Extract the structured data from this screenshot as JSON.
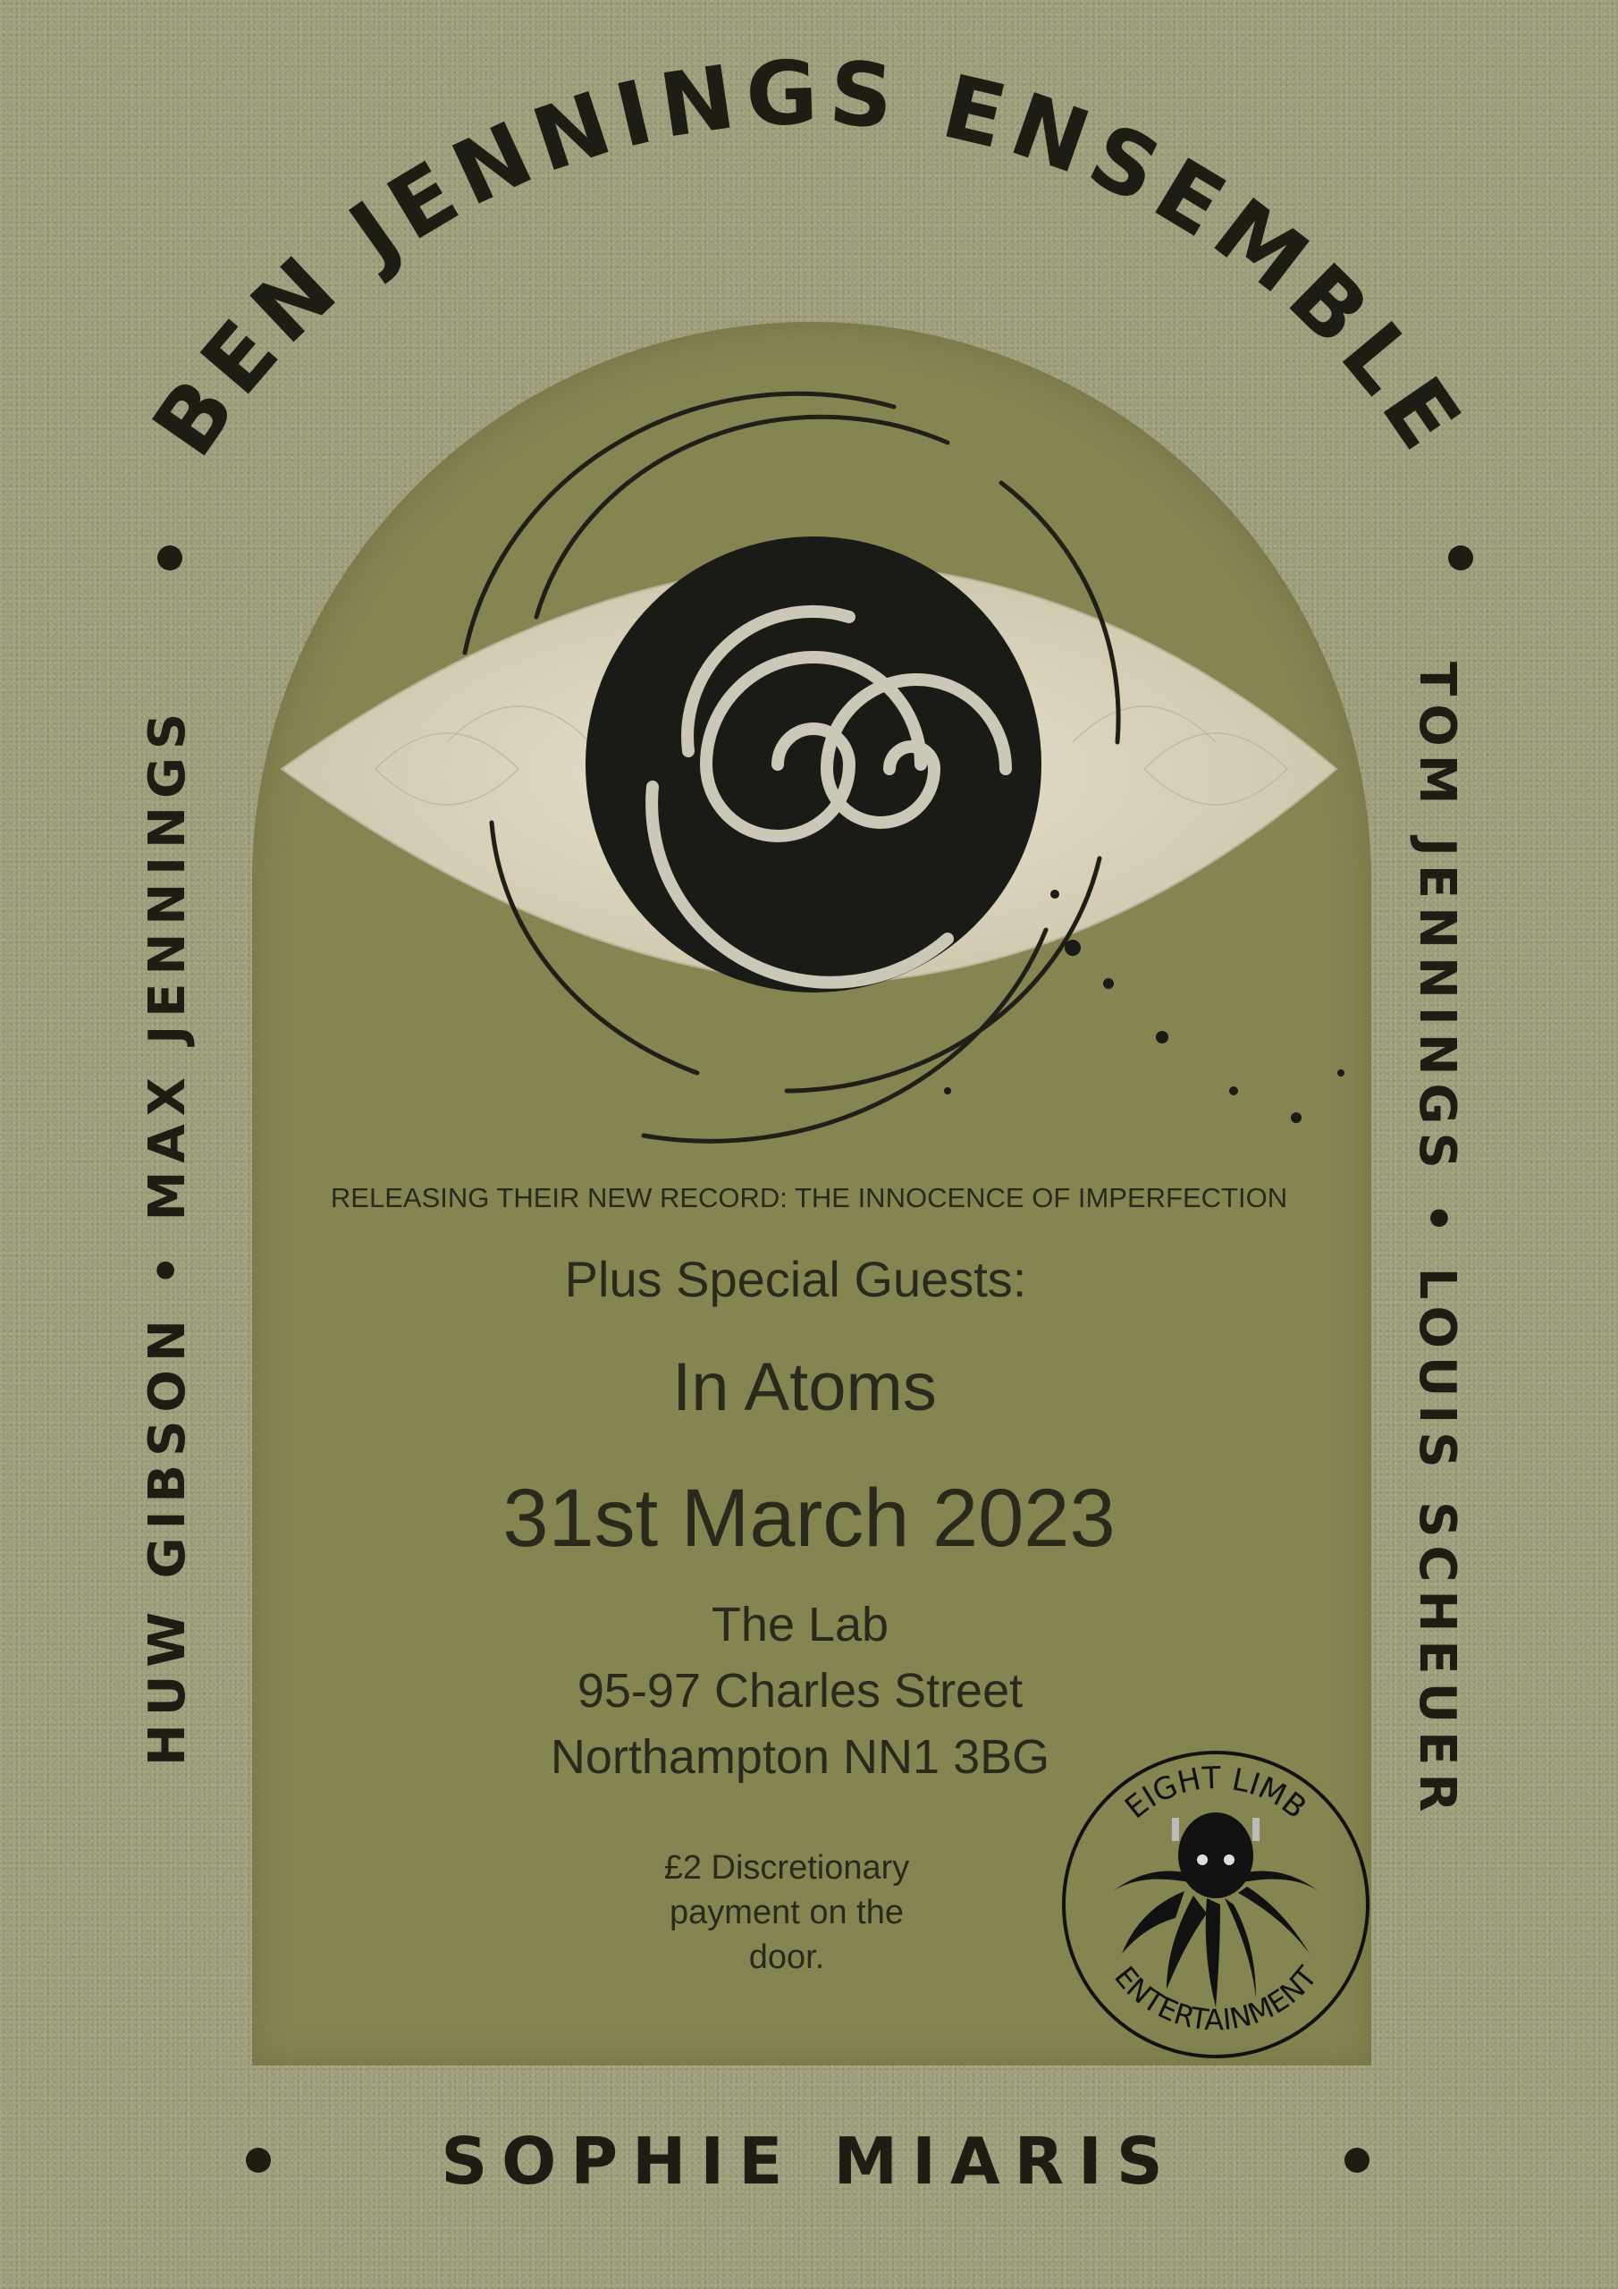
{
  "band_name": "BEN JENNINGS ENSEMBLE",
  "members": {
    "left": "HUW GIBSON • MAX JENNINGS",
    "right": "TOM JENNINGS • LOUIS SCHEUER",
    "bottom": "SOPHIE MIARIS"
  },
  "release_line": "RELEASING THEIR NEW RECORD: THE INNOCENCE OF IMPERFECTION",
  "guests_label": "Plus Special Guests:",
  "guest_name": "In Atoms",
  "date": "31st March 2023",
  "venue": {
    "name": "The Lab",
    "street": "95-97 Charles Street",
    "city": "Northampton NN1 3BG"
  },
  "payment": {
    "line1": "£2 Discretionary",
    "line2": "payment on the",
    "line3": "door."
  },
  "logo": {
    "top_text": "EIGHT LIMB",
    "bottom_text": "ENTERTAINMENT",
    "icon": "octopus-icon"
  },
  "colors": {
    "background": "#9e9d7b",
    "panel": "#858552",
    "text": "#1d1d14"
  }
}
